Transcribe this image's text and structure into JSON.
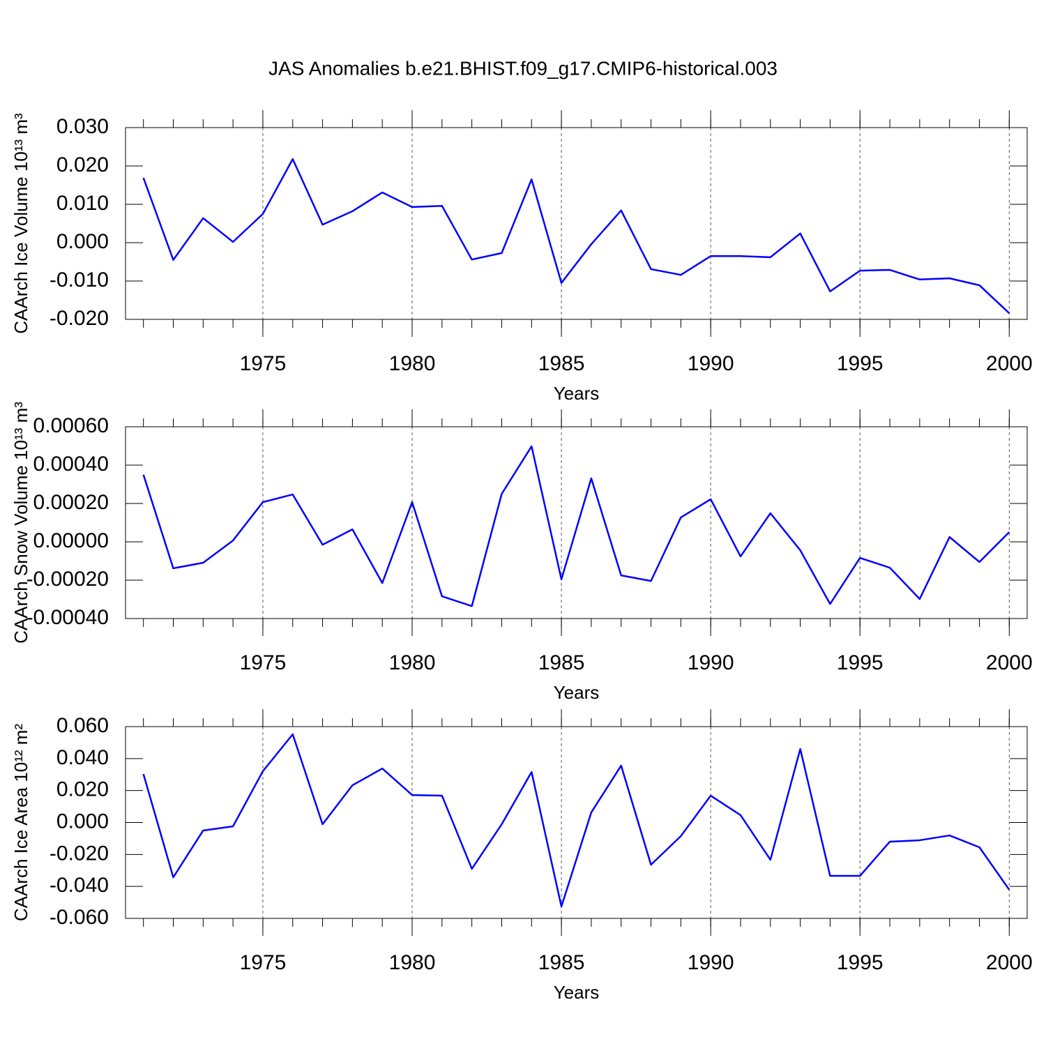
{
  "title": "JAS Anomalies b.e21.BHIST.f09_g17.CMIP6-historical.003",
  "chart_data": [
    {
      "type": "line",
      "ylabel": "CAArch Ice Volume 10¹³ m³",
      "xlabel": "Years",
      "x": [
        1971,
        1972,
        1973,
        1974,
        1975,
        1976,
        1977,
        1978,
        1979,
        1980,
        1981,
        1982,
        1983,
        1984,
        1985,
        1986,
        1987,
        1988,
        1989,
        1990,
        1991,
        1992,
        1993,
        1994,
        1995,
        1996,
        1997,
        1998,
        1999,
        2000
      ],
      "values": [
        0.0169,
        -0.0045,
        0.0064,
        0.0002,
        0.0075,
        0.0218,
        0.0047,
        0.0082,
        0.0131,
        0.0093,
        0.0096,
        -0.0044,
        -0.0027,
        0.0165,
        -0.0105,
        -0.0004,
        0.0084,
        -0.0069,
        -0.0084,
        -0.0035,
        -0.0035,
        -0.0038,
        0.0024,
        -0.0127,
        -0.0073,
        -0.0071,
        -0.0096,
        -0.0093,
        -0.0111,
        -0.0184
      ],
      "color": "#0000ff",
      "xlim": [
        1970.4,
        2000.6
      ],
      "xticks": [
        1975,
        1980,
        1985,
        1990,
        1995,
        2000
      ],
      "ylim": [
        -0.02,
        0.03
      ],
      "yticks": [
        {
          "value": -0.02,
          "label": "-0.020"
        },
        {
          "value": -0.01,
          "label": "-0.010"
        },
        {
          "value": 0,
          "label": "0.000"
        },
        {
          "value": 0.01,
          "label": "0.010"
        },
        {
          "value": 0.02,
          "label": "0.020"
        },
        {
          "value": 0.03,
          "label": "0.030"
        }
      ],
      "grid": "x"
    },
    {
      "type": "line",
      "ylabel": "CAArch Snow Volume 10¹³ m³",
      "xlabel": "Years",
      "x": [
        1971,
        1972,
        1973,
        1974,
        1975,
        1976,
        1977,
        1978,
        1979,
        1980,
        1981,
        1982,
        1983,
        1984,
        1985,
        1986,
        1987,
        1988,
        1989,
        1990,
        1991,
        1992,
        1993,
        1994,
        1995,
        1996,
        1997,
        1998,
        1999,
        2000
      ],
      "values": [
        0.00035,
        -0.000138,
        -0.000109,
        7e-06,
        0.000207,
        0.000247,
        -1.5e-05,
        6.5e-05,
        -0.000215,
        0.000207,
        -0.000284,
        -0.000335,
        0.00025,
        0.000498,
        -0.000196,
        0.000331,
        -0.000175,
        -0.000204,
        0.000127,
        0.000222,
        -7.6e-05,
        0.000149,
        -4.4e-05,
        -0.000324,
        -8.4e-05,
        -0.000135,
        -0.000298,
        2.5e-05,
        -0.000105,
        5.1e-05
      ],
      "color": "#0000ff",
      "xlim": [
        1970.4,
        2000.6
      ],
      "xticks": [
        1975,
        1980,
        1985,
        1990,
        1995,
        2000
      ],
      "ylim": [
        -0.0004,
        0.0006
      ],
      "yticks": [
        {
          "value": -0.0004,
          "label": "-0.00040"
        },
        {
          "value": -0.0002,
          "label": "-0.00020"
        },
        {
          "value": 0,
          "label": "0.00000"
        },
        {
          "value": 0.0002,
          "label": "0.00020"
        },
        {
          "value": 0.0004,
          "label": "0.00040"
        },
        {
          "value": 0.0006,
          "label": "0.00060"
        }
      ],
      "grid": "x"
    },
    {
      "type": "line",
      "ylabel": "CAArch Ice Area 10¹² m²",
      "xlabel": "Years",
      "x": [
        1971,
        1972,
        1973,
        1974,
        1975,
        1976,
        1977,
        1978,
        1979,
        1980,
        1981,
        1982,
        1983,
        1984,
        1985,
        1986,
        1987,
        1988,
        1989,
        1990,
        1991,
        1992,
        1993,
        1994,
        1995,
        1996,
        1997,
        1998,
        1999,
        2000
      ],
      "values": [
        0.0303,
        -0.0343,
        -0.005,
        -0.0024,
        0.0321,
        0.0552,
        -0.0011,
        0.0233,
        0.0338,
        0.0172,
        0.0168,
        -0.029,
        -0.0011,
        0.0316,
        -0.0526,
        0.0063,
        0.0356,
        -0.0264,
        -0.0085,
        0.0168,
        0.0046,
        -0.0233,
        0.046,
        -0.0334,
        -0.0334,
        -0.012,
        -0.0111,
        -0.0081,
        -0.0155,
        -0.0421
      ],
      "color": "#0000ff",
      "xlim": [
        1970.4,
        2000.6
      ],
      "xticks": [
        1975,
        1980,
        1985,
        1990,
        1995,
        2000
      ],
      "ylim": [
        -0.06,
        0.06
      ],
      "yticks": [
        {
          "value": -0.06,
          "label": "-0.060"
        },
        {
          "value": -0.04,
          "label": "-0.040"
        },
        {
          "value": -0.02,
          "label": "-0.020"
        },
        {
          "value": 0,
          "label": "0.000"
        },
        {
          "value": 0.02,
          "label": "0.020"
        },
        {
          "value": 0.04,
          "label": "0.040"
        },
        {
          "value": 0.06,
          "label": "0.060"
        }
      ],
      "grid": "x"
    }
  ]
}
